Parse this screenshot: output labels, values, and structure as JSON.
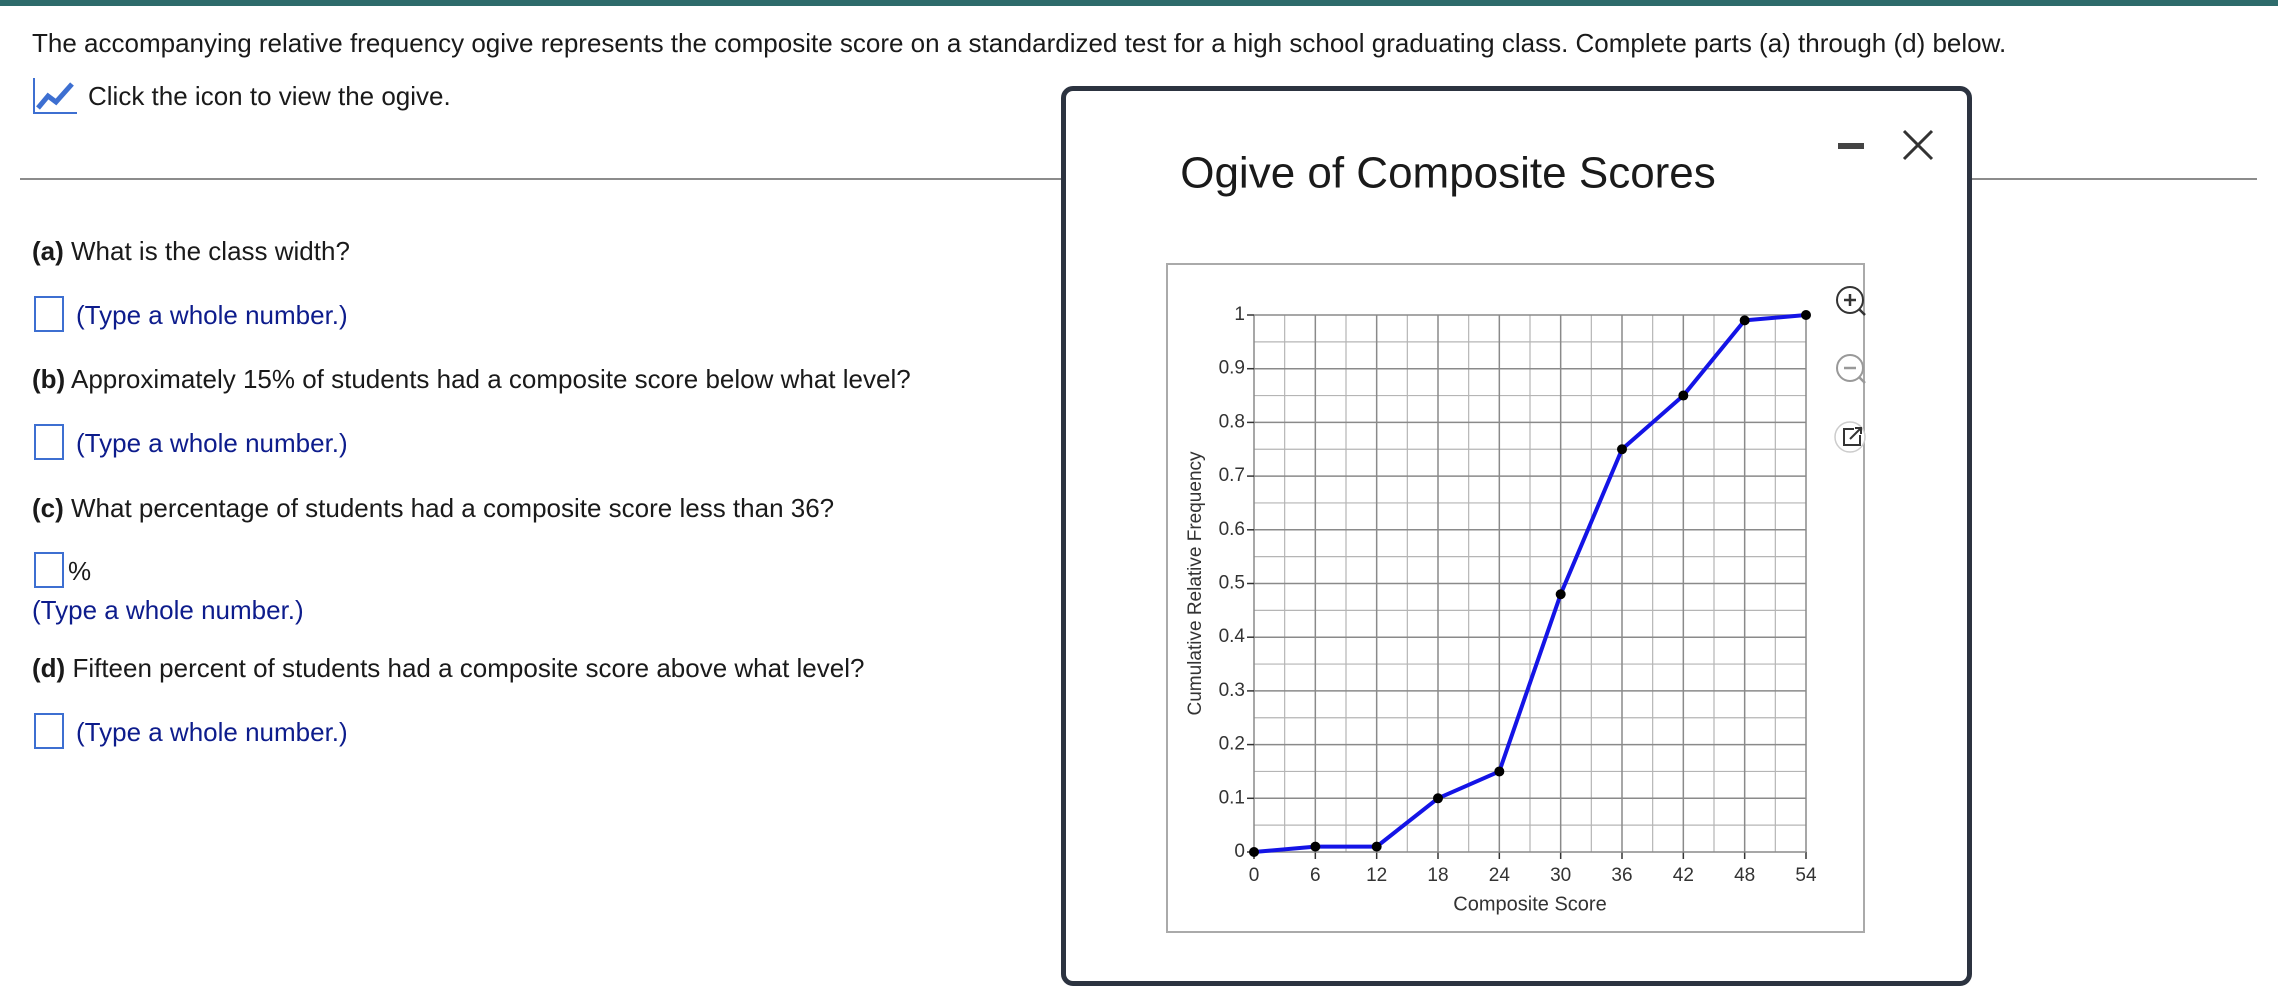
{
  "header": {
    "intro": "The accompanying relative frequency ogive represents the composite score on a standardized test for a high school graduating class. Complete parts (a) through (d) below.",
    "icon_link": "Click the icon to view the ogive."
  },
  "questions": [
    {
      "label": "(a)",
      "text": "What is the class width?",
      "hint": "(Type a whole number.)"
    },
    {
      "label": "(b)",
      "text": "Approximately 15% of students had a composite score below what level?",
      "hint": "(Type a whole number.)"
    },
    {
      "label": "(c)",
      "text": "What percentage of students had a composite score less than 36?",
      "unit": "%",
      "hint": "(Type a whole number.)"
    },
    {
      "label": "(d)",
      "text": "Fifteen percent of students had a composite score above what level?",
      "hint": "(Type a whole number.)"
    }
  ],
  "chart_data": {
    "type": "line",
    "title": "Ogive of Composite Scores",
    "xlabel": "Composite Score",
    "ylabel": "Cumulative Relative Frequency",
    "x": [
      0,
      6,
      12,
      18,
      24,
      30,
      36,
      42,
      48,
      54
    ],
    "values": [
      0,
      0.01,
      0.01,
      0.1,
      0.15,
      0.48,
      0.75,
      0.85,
      0.99,
      1
    ],
    "color": "#1414e6",
    "marker_color": "#000000",
    "xlim": [
      0,
      54
    ],
    "ylim": [
      0,
      1
    ],
    "xticks": [
      0,
      6,
      12,
      18,
      24,
      30,
      36,
      42,
      48,
      54
    ],
    "yticks": [
      0,
      0.1,
      0.2,
      0.3,
      0.4,
      0.5,
      0.6,
      0.7,
      0.8,
      0.9,
      1
    ],
    "minor_xticks": [
      3,
      9,
      15,
      21,
      27,
      33,
      39,
      45,
      51
    ],
    "minor_yticks": [
      0.05,
      0.15,
      0.25,
      0.35,
      0.45,
      0.55,
      0.65,
      0.75,
      0.85,
      0.95
    ],
    "grid": true
  }
}
